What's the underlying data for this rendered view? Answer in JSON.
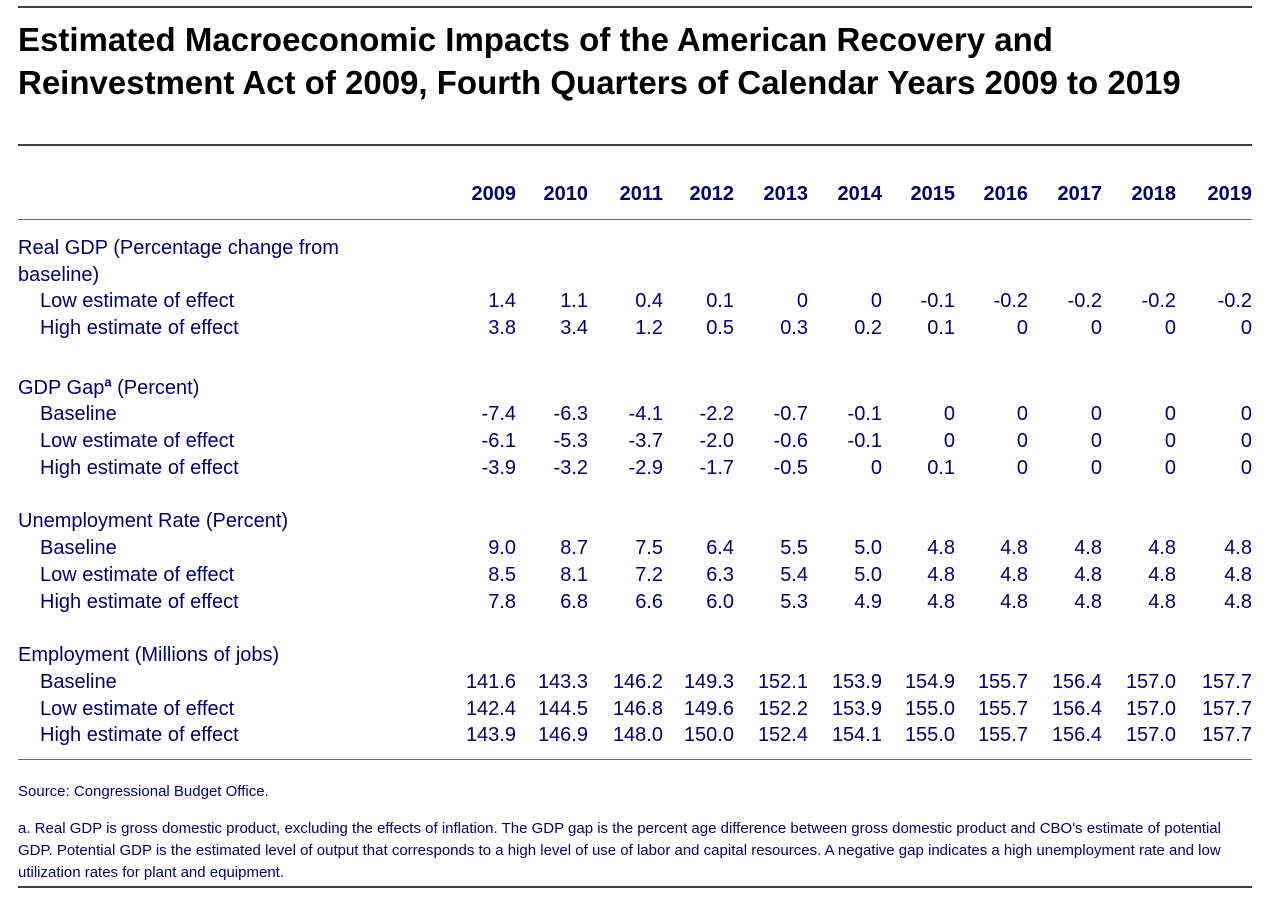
{
  "title": "Estimated Macroeconomic Impacts of the American Recovery and Reinvestment Act of 2009, Fourth Quarters of Calendar Years 2009 to 2019",
  "years": [
    "2009",
    "2010",
    "2011",
    "2012",
    "2013",
    "2014",
    "2015",
    "2016",
    "2017",
    "2018",
    "2019"
  ],
  "sections": [
    {
      "label": "Real GDP (Percentage change from baseline)",
      "footnote": "",
      "rows": [
        {
          "label": "Low estimate of effect",
          "values": [
            "1.4",
            "1.1",
            "0.4",
            "0.1",
            "0",
            "0",
            "-0.1",
            "-0.2",
            "-0.2",
            "-0.2",
            "-0.2"
          ]
        },
        {
          "label": "High estimate of effect",
          "values": [
            "3.8",
            "3.4",
            "1.2",
            "0.5",
            "0.3",
            "0.2",
            "0.1",
            "0",
            "0",
            "0",
            "0"
          ]
        }
      ]
    },
    {
      "label": "GDP Gap",
      "footnote": "a",
      "label_suffix": " (Percent)",
      "rows": [
        {
          "label": "Baseline",
          "values": [
            "-7.4",
            "-6.3",
            "-4.1",
            "-2.2",
            "-0.7",
            "-0.1",
            "0",
            "0",
            "0",
            "0",
            "0"
          ]
        },
        {
          "label": "Low estimate of effect",
          "values": [
            "-6.1",
            "-5.3",
            "-3.7",
            "-2.0",
            "-0.6",
            "-0.1",
            "0",
            "0",
            "0",
            "0",
            "0"
          ]
        },
        {
          "label": "High estimate of effect",
          "values": [
            "-3.9",
            "-3.2",
            "-2.9",
            "-1.7",
            "-0.5",
            "0",
            "0.1",
            "0",
            "0",
            "0",
            "0"
          ]
        }
      ]
    },
    {
      "label": "Unemployment Rate (Percent)",
      "footnote": "",
      "rows": [
        {
          "label": "Baseline",
          "values": [
            "9.0",
            "8.7",
            "7.5",
            "6.4",
            "5.5",
            "5.0",
            "4.8",
            "4.8",
            "4.8",
            "4.8",
            "4.8"
          ]
        },
        {
          "label": "Low estimate of effect",
          "values": [
            "8.5",
            "8.1",
            "7.2",
            "6.3",
            "5.4",
            "5.0",
            "4.8",
            "4.8",
            "4.8",
            "4.8",
            "4.8"
          ]
        },
        {
          "label": "High estimate of effect",
          "values": [
            "7.8",
            "6.8",
            "6.6",
            "6.0",
            "5.3",
            "4.9",
            "4.8",
            "4.8",
            "4.8",
            "4.8",
            "4.8"
          ]
        }
      ]
    },
    {
      "label": "Employment (Millions of jobs)",
      "footnote": "",
      "rows": [
        {
          "label": "Baseline",
          "values": [
            "141.6",
            "143.3",
            "146.2",
            "149.3",
            "152.1",
            "153.9",
            "154.9",
            "155.7",
            "156.4",
            "157.0",
            "157.7"
          ]
        },
        {
          "label": "Low estimate of effect",
          "values": [
            "142.4",
            "144.5",
            "146.8",
            "149.6",
            "152.2",
            "153.9",
            "155.0",
            "155.7",
            "156.4",
            "157.0",
            "157.7"
          ]
        },
        {
          "label": "High estimate of effect",
          "values": [
            "143.9",
            "146.9",
            "148.0",
            "150.0",
            "152.4",
            "154.1",
            "155.0",
            "155.7",
            "156.4",
            "157.0",
            "157.7"
          ]
        }
      ]
    }
  ],
  "source": "Source: Congressional Budget Office.",
  "footnote_text": "a. Real GDP is gross domestic product, excluding the effects of inflation. The GDP gap is the percent age difference between gross domestic product and CBO's estimate of potential GDP. Potential GDP is the estimated level of output that corresponds to a high level of use of labor and capital resources. A negative gap indicates a high unemployment rate and low utilization rates for plant and equipment."
}
